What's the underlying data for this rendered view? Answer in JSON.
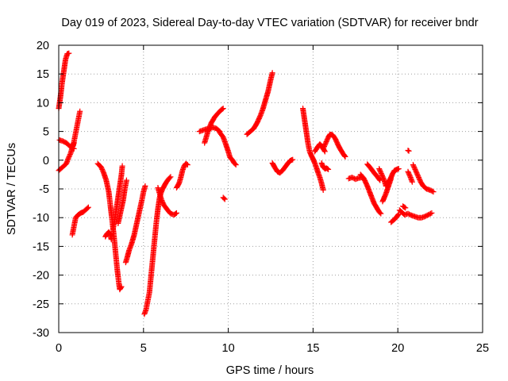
{
  "chart_data": {
    "type": "scatter",
    "title": "Day 019 of 2023, Sidereal Day-to-day VTEC variation (SDTVAR) for receiver bndr",
    "xlabel": "GPS time / hours",
    "ylabel": "SDTVAR / TECUs",
    "xlim": [
      0,
      25
    ],
    "ylim": [
      -30,
      20
    ],
    "xticks": [
      0,
      5,
      10,
      15,
      20,
      25
    ],
    "yticks": [
      -30,
      -25,
      -20,
      -15,
      -10,
      -5,
      0,
      5,
      10,
      15,
      20
    ],
    "grid": true,
    "marker": "plus",
    "color": "#ff0000",
    "segments": [
      {
        "name": "s1",
        "points": [
          [
            0,
            -1.8
          ],
          [
            0.15,
            -1.4
          ],
          [
            0.3,
            -1
          ],
          [
            0.45,
            -0.6
          ],
          [
            0.55,
            0.2
          ],
          [
            0.7,
            1.2
          ],
          [
            0.8,
            2.2
          ],
          [
            0.9,
            3
          ]
        ]
      },
      {
        "name": "s2",
        "points": [
          [
            0,
            9
          ],
          [
            0.1,
            11
          ],
          [
            0.2,
            13.5
          ],
          [
            0.3,
            15.5
          ],
          [
            0.4,
            17.5
          ],
          [
            0.5,
            18.5
          ],
          [
            0.6,
            18.6
          ]
        ]
      },
      {
        "name": "s3",
        "points": [
          [
            0.05,
            3.5
          ],
          [
            0.25,
            3.3
          ],
          [
            0.45,
            3
          ],
          [
            0.6,
            2.6
          ],
          [
            0.75,
            2.2
          ],
          [
            0.9,
            2
          ]
        ]
      },
      {
        "name": "s4",
        "points": [
          [
            0.85,
            2.5
          ],
          [
            0.95,
            4
          ],
          [
            1.05,
            5.5
          ],
          [
            1.15,
            7
          ],
          [
            1.25,
            8.5
          ]
        ]
      },
      {
        "name": "s5",
        "points": [
          [
            0.8,
            -13
          ],
          [
            0.9,
            -11.5
          ],
          [
            1,
            -10
          ],
          [
            1.15,
            -9.5
          ],
          [
            1.3,
            -9.2
          ],
          [
            1.45,
            -9
          ],
          [
            1.6,
            -8.6
          ],
          [
            1.75,
            -8.2
          ]
        ]
      },
      {
        "name": "s6",
        "points": [
          [
            2.3,
            -0.6
          ],
          [
            2.5,
            -1.2
          ],
          [
            2.65,
            -2.2
          ],
          [
            2.8,
            -3.5
          ],
          [
            2.95,
            -5.5
          ],
          [
            3.05,
            -8
          ],
          [
            3.15,
            -10.5
          ],
          [
            3.25,
            -13
          ],
          [
            3.35,
            -16
          ],
          [
            3.45,
            -19
          ],
          [
            3.55,
            -21.5
          ],
          [
            3.6,
            -22.5
          ],
          [
            3.7,
            -22
          ]
        ]
      },
      {
        "name": "s7",
        "points": [
          [
            2.75,
            -13.3
          ],
          [
            2.85,
            -12.8
          ],
          [
            2.95,
            -12.5
          ],
          [
            3.05,
            -12.9
          ],
          [
            3.1,
            -13.8
          ]
        ]
      },
      {
        "name": "s8",
        "points": [
          [
            3.2,
            -12
          ],
          [
            3.3,
            -10.5
          ],
          [
            3.4,
            -8.5
          ],
          [
            3.5,
            -6.5
          ],
          [
            3.6,
            -4.5
          ],
          [
            3.7,
            -2.5
          ],
          [
            3.75,
            -1
          ]
        ]
      },
      {
        "name": "s9",
        "points": [
          [
            3.5,
            -11
          ],
          [
            3.65,
            -9
          ],
          [
            3.8,
            -7
          ],
          [
            3.9,
            -5
          ],
          [
            4,
            -3.5
          ]
        ]
      },
      {
        "name": "s10",
        "points": [
          [
            3.95,
            -17.8
          ],
          [
            4.05,
            -16.8
          ],
          [
            4.15,
            -15.7
          ],
          [
            4.3,
            -14.5
          ],
          [
            4.45,
            -13
          ],
          [
            4.6,
            -11
          ],
          [
            4.75,
            -9
          ],
          [
            4.9,
            -7
          ],
          [
            5,
            -5.5
          ],
          [
            5.1,
            -4.5
          ]
        ]
      },
      {
        "name": "s11",
        "points": [
          [
            5.05,
            -26.8
          ],
          [
            5.15,
            -26
          ],
          [
            5.25,
            -24.5
          ],
          [
            5.35,
            -23
          ],
          [
            5.45,
            -20
          ],
          [
            5.55,
            -17
          ],
          [
            5.65,
            -14
          ],
          [
            5.75,
            -11
          ],
          [
            5.85,
            -8.5
          ],
          [
            5.95,
            -6.5
          ],
          [
            6.05,
            -5.5
          ]
        ]
      },
      {
        "name": "s12",
        "points": [
          [
            5.85,
            -4.8
          ],
          [
            5.95,
            -5.8
          ],
          [
            6.05,
            -6.8
          ],
          [
            6.2,
            -7.8
          ],
          [
            6.4,
            -8.6
          ],
          [
            6.6,
            -9.3
          ],
          [
            6.8,
            -9.5
          ],
          [
            6.95,
            -9.2
          ]
        ]
      },
      {
        "name": "s13",
        "points": [
          [
            6.05,
            -5.5
          ],
          [
            6.2,
            -4.6
          ],
          [
            6.35,
            -3.8
          ],
          [
            6.5,
            -3.2
          ],
          [
            6.6,
            -2.9
          ]
        ]
      },
      {
        "name": "s14",
        "points": [
          [
            6.95,
            -4.8
          ],
          [
            7.1,
            -4
          ],
          [
            7.2,
            -3
          ],
          [
            7.3,
            -1.8
          ],
          [
            7.4,
            -1
          ],
          [
            7.5,
            -0.6
          ],
          [
            7.6,
            -0.8
          ]
        ]
      },
      {
        "name": "s15",
        "points": [
          [
            8.3,
            5
          ],
          [
            8.5,
            5.2
          ],
          [
            8.7,
            5.4
          ],
          [
            8.9,
            5.5
          ],
          [
            9.1,
            5.7
          ],
          [
            9.3,
            5.5
          ],
          [
            9.5,
            5
          ]
        ]
      },
      {
        "name": "s16",
        "points": [
          [
            8.6,
            3
          ],
          [
            8.8,
            5
          ],
          [
            9,
            6.5
          ],
          [
            9.2,
            7.5
          ],
          [
            9.4,
            8.2
          ],
          [
            9.6,
            8.8
          ],
          [
            9.7,
            9
          ]
        ]
      },
      {
        "name": "s17",
        "points": [
          [
            9.5,
            4.8
          ],
          [
            9.7,
            4
          ],
          [
            9.85,
            2.8
          ],
          [
            10,
            1.5
          ],
          [
            10.1,
            0.5
          ],
          [
            10.25,
            0
          ],
          [
            10.35,
            -0.5
          ],
          [
            10.45,
            -0.8
          ]
        ]
      },
      {
        "name": "s18",
        "points": [
          [
            9.7,
            -6.5
          ],
          [
            9.8,
            -6.8
          ]
        ]
      },
      {
        "name": "s19",
        "points": [
          [
            11.1,
            4.5
          ],
          [
            11.3,
            5
          ],
          [
            11.5,
            5.5
          ],
          [
            11.7,
            6.5
          ],
          [
            11.9,
            7.8
          ],
          [
            12.05,
            9
          ],
          [
            12.2,
            10.5
          ],
          [
            12.35,
            12
          ],
          [
            12.5,
            14
          ],
          [
            12.6,
            15.2
          ]
        ]
      },
      {
        "name": "s20",
        "points": [
          [
            12.6,
            -0.5
          ],
          [
            12.75,
            -1.3
          ],
          [
            12.9,
            -2
          ],
          [
            13.05,
            -2.2
          ],
          [
            13.2,
            -1.8
          ],
          [
            13.35,
            -1.2
          ],
          [
            13.5,
            -0.6
          ],
          [
            13.65,
            -0.1
          ],
          [
            13.8,
            0.1
          ]
        ]
      },
      {
        "name": "s21",
        "points": [
          [
            14.4,
            9
          ],
          [
            14.5,
            7
          ],
          [
            14.6,
            5
          ],
          [
            14.7,
            3
          ],
          [
            14.8,
            1.5
          ],
          [
            14.9,
            0.8
          ],
          [
            15,
            0.2
          ],
          [
            15.1,
            -0.5
          ],
          [
            15.2,
            -1.3
          ],
          [
            15.3,
            -2.2
          ],
          [
            15.4,
            -3
          ],
          [
            15.5,
            -4
          ],
          [
            15.6,
            -5.2
          ]
        ]
      },
      {
        "name": "s22",
        "points": [
          [
            15.1,
            1.5
          ],
          [
            15.25,
            2.2
          ],
          [
            15.4,
            2.8
          ],
          [
            15.5,
            2.5
          ],
          [
            15.6,
            2
          ],
          [
            15.7,
            1.5
          ]
        ]
      },
      {
        "name": "s23",
        "points": [
          [
            15.6,
            2
          ],
          [
            15.75,
            3
          ],
          [
            15.9,
            4
          ],
          [
            16,
            4.5
          ],
          [
            16.15,
            4.4
          ],
          [
            16.3,
            3.8
          ],
          [
            16.5,
            2.5
          ],
          [
            16.65,
            1.7
          ],
          [
            16.8,
            1
          ],
          [
            16.9,
            0.6
          ]
        ]
      },
      {
        "name": "s24",
        "points": [
          [
            15.5,
            -0.5
          ],
          [
            15.6,
            -1.2
          ],
          [
            15.7,
            -1.5
          ],
          [
            15.8,
            -1.4
          ],
          [
            15.9,
            -1.6
          ]
        ]
      },
      {
        "name": "s25",
        "points": [
          [
            17.1,
            -3.2
          ],
          [
            17.3,
            -3
          ],
          [
            17.5,
            -3.3
          ],
          [
            17.7,
            -3.1
          ],
          [
            17.9,
            -3
          ]
        ]
      },
      {
        "name": "s26",
        "points": [
          [
            17.8,
            -2.5
          ],
          [
            18,
            -3.2
          ],
          [
            18.2,
            -4.5
          ],
          [
            18.4,
            -6
          ],
          [
            18.6,
            -7.5
          ],
          [
            18.8,
            -8.5
          ],
          [
            18.9,
            -9
          ],
          [
            19,
            -9.3
          ]
        ]
      },
      {
        "name": "s27",
        "points": [
          [
            18.2,
            -0.7
          ],
          [
            18.4,
            -1.4
          ],
          [
            18.6,
            -2.2
          ],
          [
            18.8,
            -2.9
          ],
          [
            18.95,
            -3.5
          ]
        ]
      },
      {
        "name": "s28",
        "points": [
          [
            18.9,
            -1.5
          ],
          [
            19.05,
            -2.5
          ],
          [
            19.2,
            -3.5
          ],
          [
            19.3,
            -4.5
          ],
          [
            19.45,
            -3.8
          ],
          [
            19.6,
            -3
          ],
          [
            19.7,
            -2.3
          ],
          [
            19.8,
            -1.8
          ],
          [
            19.95,
            -1.6
          ],
          [
            20.05,
            -1.5
          ]
        ]
      },
      {
        "name": "s29",
        "points": [
          [
            19.1,
            -7.2
          ],
          [
            19.2,
            -6.5
          ],
          [
            19.3,
            -5.8
          ],
          [
            19.45,
            -4.5
          ],
          [
            19.6,
            -3.2
          ]
        ]
      },
      {
        "name": "s30",
        "points": [
          [
            19.6,
            -10.8
          ],
          [
            19.8,
            -10.3
          ],
          [
            19.95,
            -9.8
          ],
          [
            20.05,
            -9.4
          ]
        ]
      },
      {
        "name": "s31",
        "points": [
          [
            20.1,
            -8.7
          ],
          [
            20.25,
            -9.1
          ],
          [
            20.4,
            -9.5
          ],
          [
            20.6,
            -9.3
          ],
          [
            20.8,
            -9.6
          ],
          [
            21,
            -9.8
          ],
          [
            21.2,
            -10
          ],
          [
            21.4,
            -10
          ],
          [
            21.6,
            -9.8
          ],
          [
            21.8,
            -9.5
          ],
          [
            22,
            -9.2
          ]
        ]
      },
      {
        "name": "s32",
        "points": [
          [
            20.3,
            -8
          ],
          [
            20.45,
            -8.3
          ]
        ]
      },
      {
        "name": "s33",
        "points": [
          [
            20.9,
            -0.8
          ],
          [
            21.05,
            -1.8
          ],
          [
            21.2,
            -2.8
          ],
          [
            21.35,
            -3.8
          ],
          [
            21.5,
            -4.5
          ],
          [
            21.7,
            -5
          ],
          [
            21.9,
            -5.2
          ],
          [
            22.1,
            -5.5
          ]
        ]
      },
      {
        "name": "s34",
        "points": [
          [
            20.6,
            -2
          ],
          [
            20.75,
            -3
          ],
          [
            20.85,
            -3.8
          ]
        ]
      },
      {
        "name": "s35",
        "points": [
          [
            20.6,
            1.7
          ],
          [
            20.65,
            1.6
          ]
        ]
      }
    ]
  }
}
